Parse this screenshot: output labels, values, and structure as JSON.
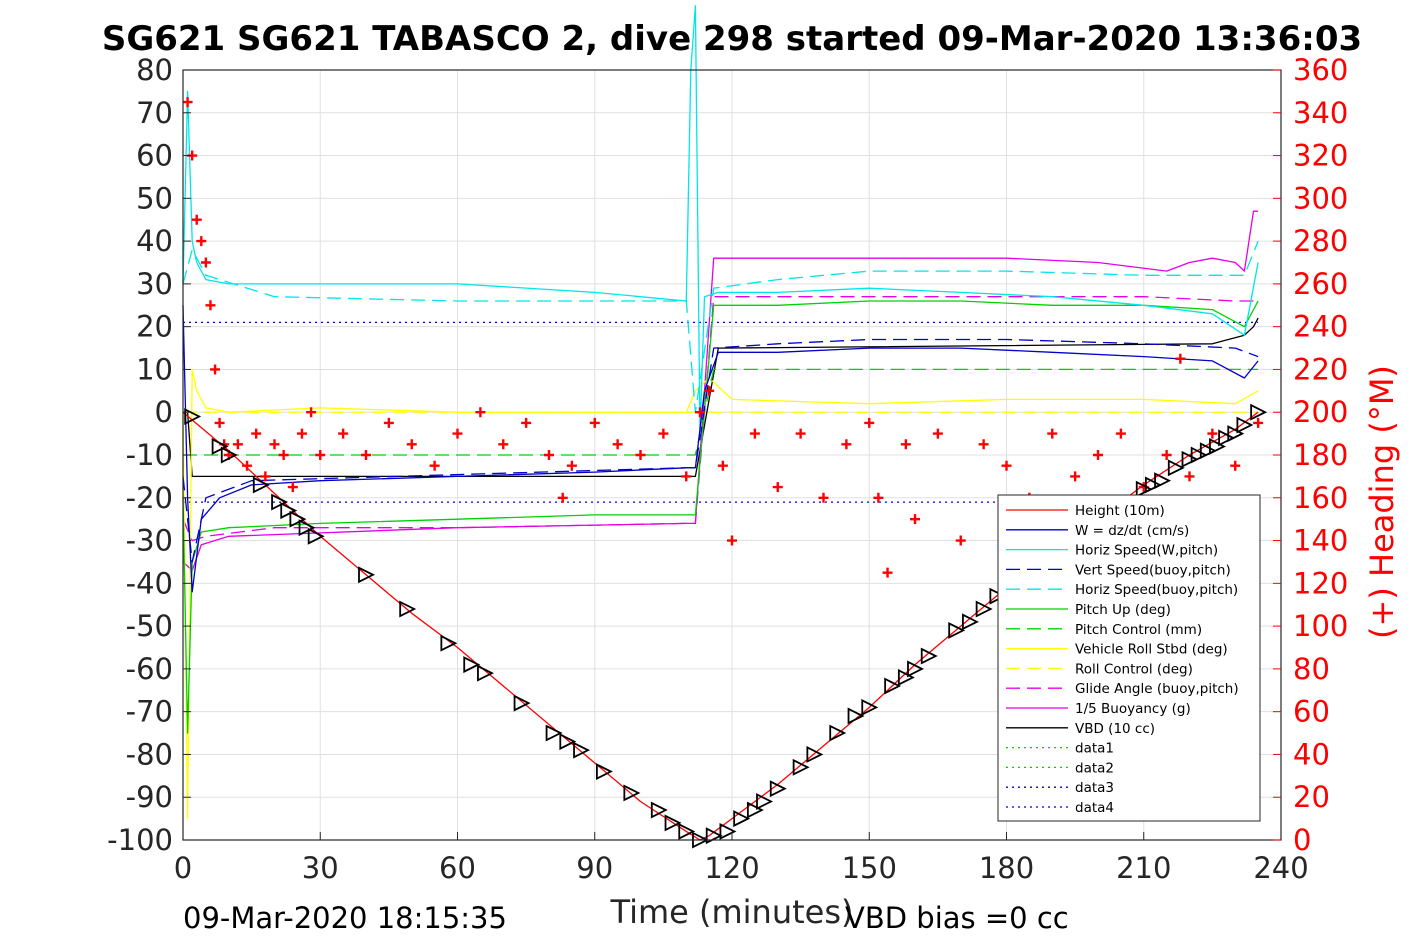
{
  "figure": {
    "title": "SG621 SG621 TABASCO 2, dive 298 started 09-Mar-2020 13:36:03",
    "footer_left": "09-Mar-2020 18:15:35",
    "footer_right": "VBD bias =0 cc"
  },
  "chart_data": {
    "type": "line",
    "title": "SG621 SG621 TABASCO 2, dive 298 started 09-Mar-2020 13:36:03",
    "xlabel": "Time (minutes)",
    "ylabel": "",
    "y2label": "(+) Heading (°M)",
    "xlim": [
      0,
      240
    ],
    "ylim": [
      -100,
      80
    ],
    "y2lim": [
      0,
      360
    ],
    "xticks": [
      0,
      30,
      60,
      90,
      120,
      150,
      180,
      210,
      240
    ],
    "yticks": [
      -100,
      -90,
      -80,
      -70,
      -60,
      -50,
      -40,
      -30,
      -20,
      -10,
      0,
      10,
      20,
      30,
      40,
      50,
      60,
      70,
      80
    ],
    "y2ticks": [
      0,
      20,
      40,
      60,
      80,
      100,
      120,
      140,
      160,
      180,
      200,
      220,
      240,
      260,
      280,
      300,
      320,
      340,
      360
    ],
    "grid": true,
    "legend_position": "lower-right",
    "colors": {
      "red": "#ff0000",
      "blue": "#0000c8",
      "cyan": "#00e6e6",
      "green": "#00d200",
      "yellow": "#ffff00",
      "magenta": "#e600e6",
      "black": "#000000"
    },
    "series": [
      {
        "name": "Height (10m)",
        "color": "#ff0000",
        "style": "solid",
        "x": [
          0,
          10,
          20,
          30,
          40,
          50,
          60,
          70,
          80,
          90,
          100,
          110,
          113,
          115,
          120,
          130,
          140,
          150,
          160,
          170,
          180,
          190,
          200,
          210,
          220,
          230,
          235
        ],
        "y": [
          0,
          -9,
          -19,
          -29,
          -38,
          -47,
          -55,
          -64,
          -73,
          -82,
          -91,
          -98,
          -100,
          -99,
          -95,
          -87,
          -78,
          -69,
          -59,
          -50,
          -41,
          -33,
          -25,
          -17,
          -10,
          -4,
          0
        ]
      },
      {
        "name": "W = dz/dt (cm/s)",
        "color": "#0000c8",
        "style": "solid",
        "x": [
          0,
          1,
          2,
          4,
          8,
          15,
          30,
          60,
          90,
          110,
          112,
          114,
          117,
          130,
          150,
          170,
          190,
          210,
          225,
          232,
          235
        ],
        "y": [
          25,
          -20,
          -42,
          -25,
          -20,
          -17,
          -16,
          -15,
          -14,
          -13,
          -13,
          5,
          14,
          14,
          15,
          15,
          14,
          13,
          12,
          8,
          12
        ]
      },
      {
        "name": "Horiz Speed(W,pitch)",
        "color": "#00e6e6",
        "style": "solid",
        "x": [
          0,
          1,
          2,
          3,
          5,
          10,
          30,
          60,
          90,
          110,
          111,
          112,
          113,
          114,
          117,
          130,
          150,
          170,
          190,
          210,
          225,
          232,
          235
        ],
        "y": [
          30,
          75,
          40,
          35,
          31,
          30,
          30,
          30,
          28,
          26,
          80,
          95,
          -5,
          27,
          28,
          28,
          29,
          28,
          27,
          25,
          23,
          18,
          35
        ]
      },
      {
        "name": "Vert Speed(buoy,pitch)",
        "color": "#0000c8",
        "style": "dash",
        "x": [
          0,
          2,
          5,
          15,
          110,
          112,
          116,
          130,
          150,
          180,
          210,
          230,
          235
        ],
        "y": [
          -15,
          -35,
          -20,
          -16,
          -13,
          -13,
          15,
          16,
          17,
          17,
          16,
          15,
          13
        ]
      },
      {
        "name": "Horiz Speed(buoy,pitch)",
        "color": "#00e6e6",
        "style": "dash",
        "x": [
          0,
          2,
          5,
          20,
          60,
          110,
          112,
          116,
          130,
          150,
          180,
          210,
          225,
          232,
          235
        ],
        "y": [
          30,
          38,
          32,
          27,
          26,
          26,
          0,
          29,
          31,
          33,
          33,
          32,
          32,
          32,
          40
        ]
      },
      {
        "name": "Pitch Up (deg)",
        "color": "#00d200",
        "style": "solid",
        "x": [
          0,
          1,
          2,
          4,
          10,
          30,
          60,
          90,
          110,
          112,
          116,
          130,
          150,
          170,
          190,
          210,
          225,
          232,
          235
        ],
        "y": [
          -20,
          -75,
          -35,
          -28,
          -27,
          -26,
          -25,
          -24,
          -24,
          -24,
          25,
          25,
          26,
          26,
          25,
          25,
          24,
          20,
          26
        ]
      },
      {
        "name": "Pitch Control (mm)",
        "color": "#00d200",
        "style": "dash",
        "x": [
          0,
          2,
          110,
          112,
          116,
          235
        ],
        "y": [
          -10,
          -10,
          -10,
          -10,
          10,
          10
        ]
      },
      {
        "name": "Vehicle Roll Stbd (deg)",
        "color": "#ffff00",
        "style": "solid",
        "x": [
          0,
          1,
          2,
          3,
          5,
          10,
          30,
          60,
          90,
          110,
          112,
          115,
          120,
          150,
          180,
          210,
          230,
          235
        ],
        "y": [
          0,
          -95,
          10,
          5,
          1,
          0,
          1,
          0,
          0,
          0,
          5,
          8,
          3,
          2,
          3,
          3,
          2,
          5
        ]
      },
      {
        "name": "Roll Control (deg)",
        "color": "#ffff00",
        "style": "dash",
        "x": [
          0,
          235
        ],
        "y": [
          0,
          0
        ]
      },
      {
        "name": "Glide Angle (buoy,pitch)",
        "color": "#e600e6",
        "style": "dash",
        "x": [
          0,
          2,
          5,
          20,
          60,
          110,
          112,
          116,
          150,
          210,
          230,
          235
        ],
        "y": [
          -25,
          -30,
          -29,
          -27,
          -27,
          -26,
          -26,
          27,
          27,
          27,
          26,
          26
        ]
      },
      {
        "name": "1/5 Buoyancy (g)",
        "color": "#e600e6",
        "style": "solid",
        "x": [
          0,
          2,
          4,
          10,
          60,
          110,
          112,
          116,
          150,
          180,
          200,
          215,
          220,
          225,
          230,
          232,
          234,
          235
        ],
        "y": [
          -35,
          -37,
          -31,
          -29,
          -27,
          -26,
          -26,
          36,
          36,
          36,
          35,
          33,
          35,
          36,
          35,
          33,
          47,
          47
        ]
      },
      {
        "name": "VBD (10 cc)",
        "color": "#000000",
        "style": "solid",
        "x": [
          0,
          1,
          2,
          112,
          112,
          117,
          225,
          232,
          234,
          235
        ],
        "y": [
          0,
          0,
          -15,
          -15,
          -15,
          15,
          16,
          18,
          20,
          22
        ]
      },
      {
        "name": "data1",
        "color": "#00d200",
        "style": "dot",
        "x": [],
        "y": []
      },
      {
        "name": "data2",
        "color": "#00d200",
        "style": "dot",
        "x": [],
        "y": []
      },
      {
        "name": "data3",
        "color": "#0000c8",
        "style": "dot",
        "x": [
          0,
          235
        ],
        "y": [
          21,
          21
        ]
      },
      {
        "name": "data4",
        "color": "#0000c8",
        "style": "dot",
        "x": [
          0,
          235
        ],
        "y": [
          -21,
          -21
        ]
      },
      {
        "name": "",
        "color": "#ff0000",
        "style": "marker-plus",
        "axis": "right",
        "x": [
          1,
          2,
          3,
          4,
          5,
          6,
          7,
          8,
          9,
          10,
          12,
          14,
          16,
          18,
          20,
          22,
          24,
          26,
          28,
          30,
          35,
          40,
          45,
          50,
          55,
          60,
          65,
          70,
          75,
          80,
          83,
          85,
          90,
          95,
          100,
          105,
          110,
          113,
          115,
          118,
          120,
          125,
          130,
          135,
          140,
          145,
          150,
          152,
          154,
          158,
          160,
          165,
          170,
          175,
          180,
          185,
          190,
          195,
          200,
          205,
          210,
          215,
          218,
          220,
          225,
          230,
          235
        ],
        "y": [
          345,
          320,
          290,
          280,
          270,
          250,
          220,
          195,
          185,
          180,
          185,
          175,
          190,
          170,
          185,
          180,
          165,
          190,
          200,
          180,
          190,
          180,
          195,
          185,
          175,
          190,
          200,
          185,
          195,
          180,
          160,
          175,
          195,
          185,
          180,
          190,
          170,
          200,
          210,
          175,
          140,
          190,
          165,
          190,
          160,
          185,
          195,
          160,
          125,
          185,
          150,
          190,
          140,
          185,
          175,
          160,
          190,
          170,
          180,
          190,
          165,
          180,
          225,
          170,
          190,
          175,
          195
        ]
      },
      {
        "name": "",
        "color": "#000000",
        "style": "marker-triangle",
        "x": [
          2,
          8,
          10,
          17,
          21,
          23,
          25,
          27,
          29,
          40,
          49,
          58,
          63,
          66,
          74,
          81,
          84,
          87,
          92,
          98,
          104,
          107,
          110,
          113,
          116,
          119,
          122,
          125,
          127,
          130,
          135,
          138,
          143,
          147,
          150,
          155,
          158,
          160,
          163,
          169,
          172,
          175,
          178,
          181,
          185,
          190,
          195,
          200,
          205,
          210,
          212,
          214,
          217,
          220,
          222,
          224,
          226,
          228,
          230,
          232,
          235
        ],
        "y": [
          -1,
          -8,
          -10,
          -17,
          -21,
          -23,
          -25,
          -27,
          -29,
          -38,
          -46,
          -54,
          -59,
          -61,
          -68,
          -75,
          -77,
          -79,
          -84,
          -89,
          -93,
          -96,
          -98,
          -100,
          -99,
          -98,
          -95,
          -93,
          -91,
          -88,
          -83,
          -80,
          -75,
          -71,
          -69,
          -64,
          -62,
          -60,
          -57,
          -51,
          -49,
          -46,
          -43,
          -41,
          -38,
          -34,
          -30,
          -26,
          -22,
          -18,
          -17,
          -16,
          -13,
          -11,
          -10,
          -9,
          -8,
          -6,
          -5,
          -3,
          0
        ]
      }
    ]
  }
}
